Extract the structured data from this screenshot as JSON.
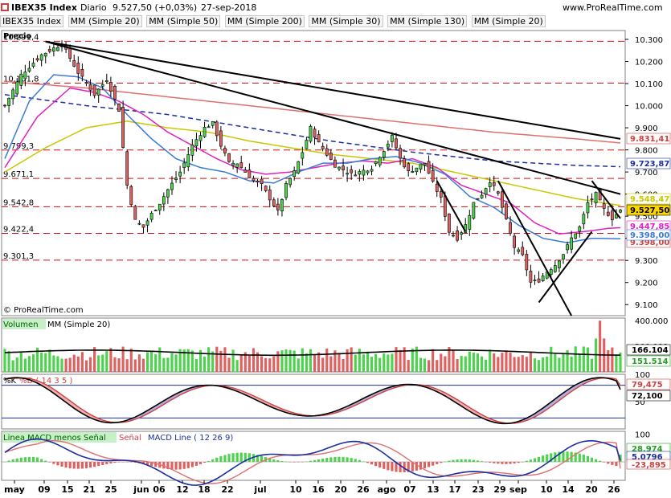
{
  "header": {
    "instrument": "IBEX35 Index",
    "period": "Diario",
    "quote": "9.527,50 (+0,03%)",
    "date": "27-sep-2018",
    "site": "www.ProRealTime.com"
  },
  "legend_items": [
    {
      "label": "IBEX35 Index",
      "color": "#000000"
    },
    {
      "label": "MM (Simple 20)",
      "color": "#3a7bd5"
    },
    {
      "label": "MM (Simple 50)",
      "color": "#c8c800"
    },
    {
      "label": "MM (Simple 200)",
      "color": "#e06666"
    },
    {
      "label": "MM (Simple 30)",
      "color": "#e020c0"
    },
    {
      "label": "MM (Simple 130)",
      "color": "#1a2fa0"
    },
    {
      "label": "MM (Simple 20)",
      "color": "#e06666"
    }
  ],
  "price_panel": {
    "label": "Precio",
    "copyright": "© ProRealTime.com",
    "y_ticks": [
      "10.300",
      "10.200",
      "10.100",
      "10.000",
      "9.900",
      "9.800",
      "9.700",
      "9.600",
      "9.500",
      "9.400",
      "9.300",
      "9.200",
      "9.100"
    ],
    "left_levels": [
      "10.291,4",
      "10.101,8",
      "9.799,3",
      "9.671,1",
      "9.542,8",
      "9.422,4",
      "9.301,3"
    ],
    "right_tags": [
      {
        "text": "9.831,41",
        "color": "#d04040"
      },
      {
        "text": "9.723,87",
        "color": "#1a2fa0"
      },
      {
        "text": "9.548,47",
        "color": "#c8c800"
      },
      {
        "text": "9.527,50",
        "color": "#000000",
        "bg": "#ffd700"
      },
      {
        "text": "9.447,85",
        "color": "#e020c0"
      },
      {
        "text": "9.398,00",
        "color": "#d04040"
      },
      {
        "text": "9.398,00",
        "color": "#3a7bd5"
      }
    ]
  },
  "volume_panel": {
    "label": "Volumen",
    "ma_label": "MM (Simple 20)",
    "y_ticks": [
      "400.000",
      "200.000"
    ],
    "right_tags": [
      {
        "text": "166.104",
        "color": "#000000"
      },
      {
        "text": "151.514",
        "color": "#20a020"
      }
    ]
  },
  "stoch_panel": {
    "k_label": "%K",
    "d_label": "%D ( 14 3 5 )",
    "y_ticks": [
      "100",
      "50"
    ],
    "right_tags": [
      {
        "text": "79,475",
        "color": "#d04040"
      },
      {
        "text": "72,100",
        "color": "#000000"
      }
    ]
  },
  "macd_panel": {
    "label1": "Linea MACD menos Señal",
    "label2": "Señal",
    "label3": "MACD Line ( 12 26 9)",
    "y_ticks": [
      "100"
    ],
    "right_tags": [
      {
        "text": "28,974",
        "color": "#20a020"
      },
      {
        "text": "5,0796",
        "color": "#1a2fa0"
      },
      {
        "text": "-23,895",
        "color": "#d04040"
      }
    ]
  },
  "x_axis": {
    "labels": [
      "may",
      "09",
      "15",
      "21",
      "25",
      "jun",
      "06",
      "12",
      "18",
      "22",
      "jul",
      "10",
      "16",
      "20",
      "26",
      "ago",
      "07",
      "13",
      "17",
      "23",
      "29",
      "sep",
      "10",
      "14",
      "20",
      "26"
    ]
  },
  "chart_data": {
    "type": "candlestick",
    "title": "IBEX35 Index",
    "subtitle": "Diario",
    "ylim": [
      9050,
      10340
    ],
    "price_path": [
      [
        0,
        10000
      ],
      [
        4,
        10140
      ],
      [
        9,
        10230
      ],
      [
        14,
        10280
      ],
      [
        18,
        10150
      ],
      [
        22,
        10050
      ],
      [
        25,
        10120
      ],
      [
        28,
        9980
      ],
      [
        30,
        9640
      ],
      [
        32,
        9480
      ],
      [
        34,
        9450
      ],
      [
        36,
        9510
      ],
      [
        38,
        9560
      ],
      [
        40,
        9620
      ],
      [
        43,
        9700
      ],
      [
        46,
        9820
      ],
      [
        49,
        9900
      ],
      [
        51,
        9920
      ],
      [
        53,
        9820
      ],
      [
        55,
        9740
      ],
      [
        57,
        9740
      ],
      [
        59,
        9700
      ],
      [
        61,
        9660
      ],
      [
        63,
        9640
      ],
      [
        65,
        9580
      ],
      [
        67,
        9520
      ],
      [
        69,
        9640
      ],
      [
        71,
        9700
      ],
      [
        73,
        9790
      ],
      [
        75,
        9900
      ],
      [
        77,
        9830
      ],
      [
        79,
        9780
      ],
      [
        81,
        9730
      ],
      [
        83,
        9710
      ],
      [
        85,
        9690
      ],
      [
        87,
        9700
      ],
      [
        90,
        9720
      ],
      [
        93,
        9800
      ],
      [
        95,
        9860
      ],
      [
        97,
        9760
      ],
      [
        99,
        9700
      ],
      [
        101,
        9720
      ],
      [
        103,
        9740
      ],
      [
        105,
        9650
      ],
      [
        107,
        9580
      ],
      [
        109,
        9430
      ],
      [
        111,
        9400
      ],
      [
        113,
        9460
      ],
      [
        115,
        9560
      ],
      [
        117,
        9600
      ],
      [
        119,
        9660
      ],
      [
        121,
        9600
      ],
      [
        123,
        9480
      ],
      [
        125,
        9360
      ],
      [
        127,
        9320
      ],
      [
        129,
        9200
      ],
      [
        131,
        9210
      ],
      [
        133,
        9250
      ],
      [
        135,
        9280
      ],
      [
        137,
        9330
      ],
      [
        139,
        9400
      ],
      [
        141,
        9450
      ],
      [
        143,
        9560
      ],
      [
        145,
        9600
      ],
      [
        147,
        9530
      ],
      [
        149,
        9490
      ],
      [
        151,
        9527.5
      ]
    ],
    "ma_20_blue": [
      [
        0,
        9760
      ],
      [
        6,
        10020
      ],
      [
        12,
        10140
      ],
      [
        18,
        10130
      ],
      [
        24,
        10080
      ],
      [
        30,
        9960
      ],
      [
        36,
        9850
      ],
      [
        42,
        9760
      ],
      [
        48,
        9720
      ],
      [
        54,
        9700
      ],
      [
        60,
        9660
      ],
      [
        66,
        9650
      ],
      [
        72,
        9700
      ],
      [
        78,
        9740
      ],
      [
        84,
        9740
      ],
      [
        90,
        9760
      ],
      [
        96,
        9770
      ],
      [
        102,
        9740
      ],
      [
        108,
        9690
      ],
      [
        114,
        9590
      ],
      [
        120,
        9540
      ],
      [
        126,
        9460
      ],
      [
        132,
        9400
      ],
      [
        138,
        9380
      ],
      [
        144,
        9400
      ],
      [
        151,
        9398
      ]
    ],
    "ma_30_magenta": [
      [
        0,
        9720
      ],
      [
        8,
        9950
      ],
      [
        16,
        10080
      ],
      [
        22,
        10060
      ],
      [
        28,
        10020
      ],
      [
        34,
        9960
      ],
      [
        40,
        9880
      ],
      [
        46,
        9820
      ],
      [
        52,
        9760
      ],
      [
        58,
        9710
      ],
      [
        64,
        9690
      ],
      [
        70,
        9700
      ],
      [
        76,
        9720
      ],
      [
        82,
        9740
      ],
      [
        88,
        9750
      ],
      [
        94,
        9740
      ],
      [
        100,
        9760
      ],
      [
        106,
        9720
      ],
      [
        112,
        9640
      ],
      [
        118,
        9600
      ],
      [
        124,
        9560
      ],
      [
        130,
        9470
      ],
      [
        136,
        9420
      ],
      [
        142,
        9430
      ],
      [
        148,
        9445
      ],
      [
        151,
        9447.85
      ]
    ],
    "ma_50_yellow": [
      [
        0,
        9700
      ],
      [
        10,
        9810
      ],
      [
        20,
        9900
      ],
      [
        30,
        9930
      ],
      [
        40,
        9900
      ],
      [
        50,
        9880
      ],
      [
        60,
        9840
      ],
      [
        70,
        9810
      ],
      [
        80,
        9780
      ],
      [
        90,
        9760
      ],
      [
        100,
        9740
      ],
      [
        110,
        9700
      ],
      [
        120,
        9660
      ],
      [
        130,
        9620
      ],
      [
        140,
        9580
      ],
      [
        151,
        9548.47
      ]
    ],
    "ma_130_navy_dashed": [
      [
        0,
        10050
      ],
      [
        20,
        10000
      ],
      [
        40,
        9960
      ],
      [
        60,
        9900
      ],
      [
        80,
        9840
      ],
      [
        100,
        9790
      ],
      [
        120,
        9750
      ],
      [
        140,
        9730
      ],
      [
        151,
        9723.87
      ]
    ],
    "ma_200_red": [
      [
        0,
        10110
      ],
      [
        20,
        10080
      ],
      [
        40,
        10040
      ],
      [
        60,
        10000
      ],
      [
        80,
        9960
      ],
      [
        100,
        9920
      ],
      [
        120,
        9880
      ],
      [
        140,
        9850
      ],
      [
        151,
        9831.41
      ]
    ],
    "trend_lines": [
      {
        "from": [
          10,
          10290
        ],
        "to": [
          151,
          9850
        ]
      },
      {
        "from": [
          10,
          10290
        ],
        "to": [
          151,
          9600
        ]
      },
      {
        "from": [
          106,
          9660
        ],
        "to": [
          113,
          9430
        ]
      },
      {
        "from": [
          121,
          9660
        ],
        "to": [
          139,
          9050
        ]
      },
      {
        "from": [
          131,
          9110
        ],
        "to": [
          144,
          9430
        ]
      },
      {
        "from": [
          144,
          9660
        ],
        "to": [
          151,
          9490
        ]
      }
    ],
    "volume": {
      "ylim": [
        0,
        420000
      ],
      "ma_last": 166104,
      "last": 151514
    },
    "stochastic": {
      "ylim": [
        0,
        100
      ],
      "overbought": 80,
      "oversold": 20,
      "k_last": 72.1,
      "d_last": 79.475
    },
    "macd": {
      "hist_last": 28.974,
      "macd_last": 5.0796,
      "signal_last": -23.895
    }
  }
}
